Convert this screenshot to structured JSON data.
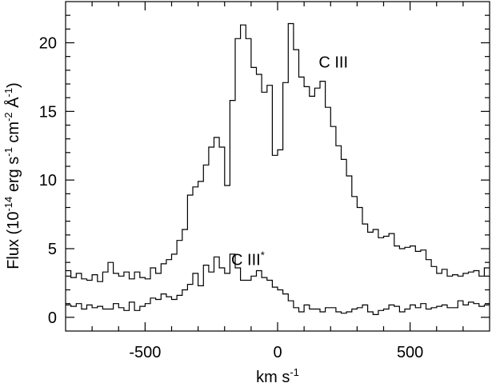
{
  "chart_data": {
    "type": "line",
    "step": true,
    "title": "",
    "xlabel": {
      "base": "km s",
      "sup": "-1"
    },
    "ylabel": {
      "parts": [
        {
          "t": "Flux (10",
          "s": false
        },
        {
          "t": "-14",
          "s": true
        },
        {
          "t": " erg s",
          "s": false
        },
        {
          "t": "-1",
          "s": true
        },
        {
          "t": " cm",
          "s": false
        },
        {
          "t": "-2",
          "s": true
        },
        {
          "t": " Å",
          "s": false
        },
        {
          "t": "-1",
          "s": true
        },
        {
          "t": ")",
          "s": false
        }
      ]
    },
    "xlim": [
      -800,
      800
    ],
    "ylim": [
      -1,
      23
    ],
    "xticks": [
      -500,
      0,
      500
    ],
    "xtick_labels": [
      "-500",
      "0",
      "500"
    ],
    "yticks": [
      0,
      5,
      10,
      15,
      20
    ],
    "ytick_labels": [
      "0",
      "5",
      "10",
      "15",
      "20"
    ],
    "annotations": [
      {
        "text": "C III",
        "sup": "",
        "x": 155,
        "y": 18.2
      },
      {
        "text": "C III",
        "sup": "*",
        "x": -175,
        "y": 3.8
      }
    ],
    "series": [
      {
        "x": [
          -800,
          -780,
          -760,
          -740,
          -720,
          -700,
          -680,
          -660,
          -640,
          -620,
          -600,
          -580,
          -560,
          -540,
          -520,
          -500,
          -480,
          -460,
          -440,
          -420,
          -400,
          -380,
          -360,
          -340,
          -320,
          -300,
          -280,
          -260,
          -240,
          -220,
          -200,
          -180,
          -160,
          -140,
          -120,
          -100,
          -80,
          -60,
          -40,
          -20,
          0,
          20,
          40,
          60,
          80,
          100,
          120,
          140,
          160,
          180,
          200,
          220,
          240,
          260,
          280,
          300,
          320,
          340,
          360,
          380,
          400,
          420,
          440,
          460,
          480,
          500,
          520,
          540,
          560,
          580,
          600,
          620,
          640,
          660,
          680,
          700,
          720,
          740,
          760,
          780
        ],
        "y": [
          3.4,
          2.9,
          3.2,
          2.8,
          2.7,
          3.1,
          2.6,
          3.3,
          4.0,
          3.2,
          3.0,
          3.3,
          2.8,
          3.3,
          2.9,
          2.8,
          3.6,
          3.2,
          3.9,
          4.2,
          4.6,
          5.6,
          6.4,
          8.9,
          9.5,
          9.9,
          11.1,
          12.4,
          13.1,
          12.4,
          9.6,
          15.8,
          20.3,
          21.3,
          20.3,
          18.2,
          17.7,
          16.4,
          16.9,
          11.8,
          12.2,
          17.1,
          21.4,
          19.5,
          17.5,
          16.8,
          16.1,
          16.7,
          17.2,
          15.3,
          13.9,
          12.5,
          11.5,
          10.3,
          8.8,
          8.0,
          6.8,
          6.2,
          6.4,
          5.8,
          5.9,
          6.1,
          5.2,
          5.0,
          5.1,
          5.2,
          4.8,
          4.9,
          4.2,
          3.7,
          3.2,
          3.5,
          3.0,
          3.1,
          3.0,
          3.2,
          3.3,
          3.4,
          3.0,
          3.6
        ]
      },
      {
        "x": [
          -800,
          -780,
          -760,
          -740,
          -720,
          -700,
          -680,
          -660,
          -640,
          -620,
          -600,
          -580,
          -560,
          -540,
          -520,
          -500,
          -480,
          -460,
          -440,
          -420,
          -400,
          -380,
          -360,
          -340,
          -320,
          -300,
          -280,
          -260,
          -240,
          -220,
          -200,
          -180,
          -160,
          -140,
          -120,
          -100,
          -80,
          -60,
          -40,
          -20,
          0,
          20,
          40,
          60,
          80,
          100,
          120,
          140,
          160,
          180,
          200,
          220,
          240,
          260,
          280,
          300,
          320,
          340,
          360,
          380,
          400,
          420,
          440,
          460,
          480,
          500,
          520,
          540,
          560,
          580,
          600,
          620,
          640,
          660,
          680,
          700,
          720,
          740,
          760,
          780
        ],
        "y": [
          0.9,
          0.8,
          1.0,
          0.6,
          0.9,
          0.7,
          0.8,
          0.6,
          0.6,
          1.0,
          0.7,
          0.5,
          1.1,
          0.5,
          0.8,
          1.0,
          1.4,
          1.3,
          1.7,
          1.5,
          1.3,
          1.6,
          2.0,
          2.4,
          3.2,
          2.3,
          3.8,
          3.3,
          4.4,
          3.6,
          3.2,
          4.6,
          3.6,
          2.7,
          2.7,
          3.0,
          3.4,
          2.9,
          2.7,
          2.2,
          2.0,
          1.7,
          1.2,
          0.7,
          0.4,
          0.9,
          0.6,
          0.6,
          0.4,
          0.7,
          0.7,
          0.4,
          0.3,
          0.4,
          0.6,
          0.7,
          0.9,
          0.4,
          0.2,
          0.5,
          0.6,
          0.9,
          0.8,
          0.4,
          0.6,
          0.9,
          0.7,
          1.0,
          0.6,
          0.7,
          0.8,
          0.9,
          0.7,
          0.7,
          1.2,
          0.9,
          1.1,
          1.0,
          0.8,
          0.9
        ]
      }
    ]
  }
}
